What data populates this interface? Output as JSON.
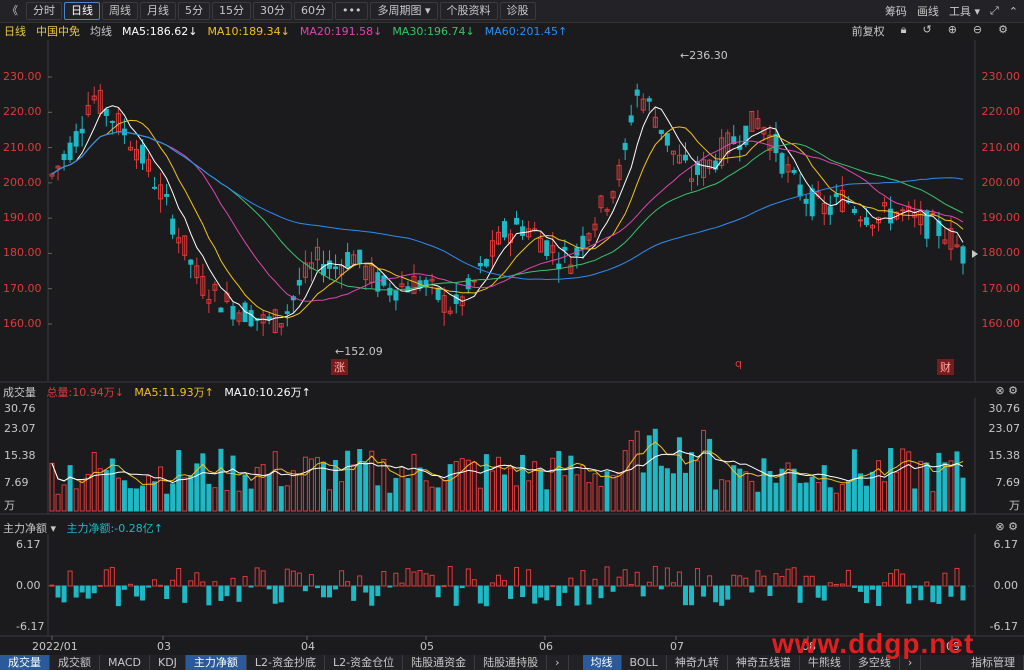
{
  "toolbar": {
    "nav_back": "《",
    "periods": [
      "分时",
      "日线",
      "周线",
      "月线",
      "5分",
      "15分",
      "30分",
      "60分"
    ],
    "active_period": 1,
    "more": "•••",
    "multi_period": "多周期图",
    "stock_info": "个股资料",
    "diagnose": "诊股",
    "right": [
      "筹码",
      "画线",
      "工具"
    ]
  },
  "legend": {
    "period": "日线",
    "stock": "中国中免",
    "avg": "均线",
    "ma5": "MA5:186.62↓",
    "ma10": "MA10:189.34↓",
    "ma20": "MA20:191.58↓",
    "ma30": "MA30:196.74↓",
    "ma60": "MA60:201.45↑",
    "adjust": "前复权"
  },
  "volume_legend": {
    "name": "成交量",
    "total": "总量:10.94万↓",
    "ma5": "MA5:11.93万↑",
    "ma10": "MA10:10.26万↑"
  },
  "flow_legend": {
    "name": "主力净额",
    "value": "主力净额:-0.28亿↑"
  },
  "price_axis": [
    "230.00",
    "220.00",
    "210.00",
    "200.00",
    "190.00",
    "180.00",
    "170.00",
    "160.00"
  ],
  "volume_axis": [
    "30.76",
    "23.07",
    "15.38",
    "7.69",
    "万"
  ],
  "flow_axis": [
    "6.17",
    "0.00",
    "-6.17"
  ],
  "date_axis": [
    "2022/01",
    "03",
    "04",
    "05",
    "06",
    "07",
    "08",
    "09"
  ],
  "annotations": {
    "high": "236.30",
    "low": "152.09",
    "markers": [
      "涨",
      "q",
      "财"
    ]
  },
  "footer_tabs": [
    "成交量",
    "成交额",
    "MACD",
    "KDJ",
    "主力净额",
    "L2-资金抄底",
    "L2-资金仓位",
    "陆股通资金",
    "陆股通持股"
  ],
  "footer_right_tabs": [
    "均线",
    "BOLL",
    "神奇九转",
    "神奇五线谱",
    "牛熊线",
    "多空线"
  ],
  "footer_manage": "指标管理",
  "watermark": "www.ddgp.net",
  "colors": {
    "up": "#e03a3a",
    "down": "#1fb8c4",
    "ma5": "#ffffff",
    "ma10": "#f2c21c",
    "ma20": "#e044b0",
    "ma30": "#3ac26a",
    "ma60": "#2f8cf0"
  }
}
